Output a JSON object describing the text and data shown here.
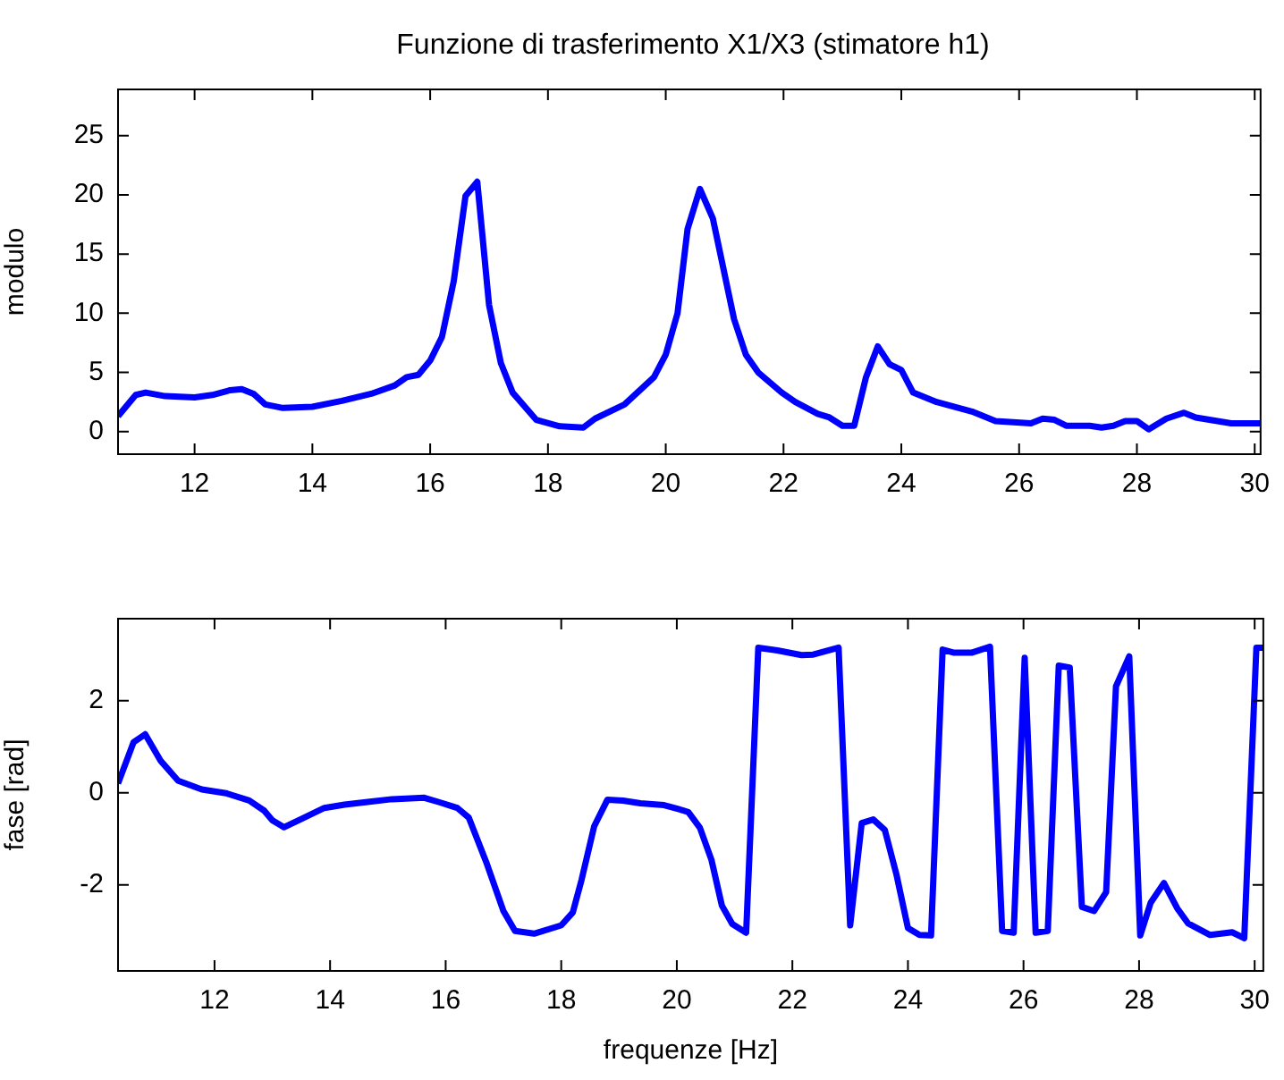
{
  "chart_data": [
    {
      "type": "line",
      "title": "Funzione di trasferimento X1/X3 (stimatore h1)",
      "ylabel": "modulo",
      "color": "#0000ff",
      "grid": false,
      "legend": false,
      "marker": "none",
      "line_style": "solid",
      "xlim": [
        10.7,
        30.1
      ],
      "xticks": [
        12,
        14,
        16,
        18,
        20,
        22,
        24,
        26,
        28,
        30
      ],
      "ylim": [
        -1.9,
        28.9
      ],
      "yticks": [
        0,
        5,
        10,
        15,
        20,
        25
      ],
      "x": [
        10.7,
        11.0,
        11.17,
        11.5,
        12,
        12.3,
        12.6,
        12.8,
        13.0,
        13.2,
        13.5,
        14.0,
        14.5,
        15.0,
        15.4,
        15.6,
        15.8,
        16.0,
        16.2,
        16.4,
        16.6,
        16.8,
        17.0,
        17.2,
        17.4,
        17.8,
        18.2,
        18.6,
        18.8,
        19.3,
        19.8,
        20.0,
        20.2,
        20.37,
        20.58,
        20.8,
        21.16,
        21.36,
        21.57,
        21.97,
        22.2,
        22.58,
        22.78,
        23.0,
        23.2,
        23.4,
        23.6,
        23.8,
        24.0,
        24.2,
        24.6,
        25.2,
        25.6,
        26.2,
        26.4,
        26.6,
        26.8,
        27.2,
        27.4,
        27.6,
        27.8,
        28.0,
        28.2,
        28.5,
        28.8,
        29.0,
        29.6,
        30.1
      ],
      "values": [
        1.3,
        3.1,
        3.3,
        3.0,
        2.9,
        3.1,
        3.5,
        3.6,
        3.2,
        2.3,
        2.0,
        2.1,
        2.6,
        3.2,
        3.9,
        4.6,
        4.8,
        6.0,
        8.0,
        12.7,
        19.9,
        21.1,
        10.7,
        5.8,
        3.3,
        1.0,
        0.45,
        0.35,
        1.1,
        2.3,
        4.6,
        6.5,
        10.0,
        17.1,
        20.5,
        18.0,
        9.5,
        6.5,
        5.0,
        3.3,
        2.5,
        1.5,
        1.2,
        0.5,
        0.5,
        4.6,
        7.2,
        5.7,
        5.2,
        3.3,
        2.5,
        1.7,
        0.9,
        0.7,
        1.1,
        1.0,
        0.5,
        0.5,
        0.35,
        0.5,
        0.9,
        0.9,
        0.2,
        1.1,
        1.6,
        1.2,
        0.7,
        0.7
      ]
    },
    {
      "type": "line",
      "xlabel": "frequenze [Hz]",
      "ylabel": "fase [rad]",
      "color": "#0000ff",
      "grid": false,
      "legend": false,
      "marker": "none",
      "line_style": "solid",
      "xlim": [
        10.33,
        30.15
      ],
      "xticks": [
        12,
        14,
        16,
        18,
        20,
        22,
        24,
        26,
        28,
        30
      ],
      "ylim": [
        -3.87,
        3.78
      ],
      "yticks": [
        -2,
        0,
        2
      ],
      "x": [
        10.33,
        10.6,
        10.8,
        11.07,
        11.37,
        11.78,
        12.2,
        12.6,
        12.86,
        13.0,
        13.2,
        13.5,
        13.9,
        14.25,
        14.65,
        15.07,
        15.63,
        15.9,
        16.2,
        16.4,
        16.7,
        17.0,
        17.2,
        17.53,
        18.0,
        18.2,
        18.35,
        18.57,
        18.8,
        19.07,
        19.37,
        19.78,
        20.04,
        20.2,
        20.4,
        20.6,
        20.78,
        20.96,
        21.2,
        21.41,
        21.74,
        22.16,
        22.36,
        22.8,
        23.0,
        23.2,
        23.4,
        23.6,
        23.8,
        24.0,
        24.2,
        24.4,
        24.6,
        24.8,
        25.1,
        25.42,
        25.63,
        25.83,
        26.02,
        26.21,
        26.42,
        26.61,
        26.8,
        27.01,
        27.22,
        27.43,
        27.6,
        27.83,
        28.02,
        28.2,
        28.43,
        28.66,
        28.85,
        29.23,
        29.61,
        29.82,
        30.03,
        30.15
      ],
      "values": [
        0.2,
        1.1,
        1.27,
        0.69,
        0.26,
        0.07,
        -0.01,
        -0.17,
        -0.39,
        -0.6,
        -0.75,
        -0.57,
        -0.33,
        -0.26,
        -0.2,
        -0.14,
        -0.11,
        -0.21,
        -0.33,
        -0.54,
        -1.5,
        -2.57,
        -3.0,
        -3.06,
        -2.88,
        -2.6,
        -1.9,
        -0.73,
        -0.15,
        -0.17,
        -0.23,
        -0.27,
        -0.36,
        -0.42,
        -0.76,
        -1.46,
        -2.45,
        -2.85,
        -3.04,
        3.15,
        3.09,
        2.99,
        3.0,
        3.15,
        -2.88,
        -0.66,
        -0.58,
        -0.81,
        -1.77,
        -2.94,
        -3.09,
        -3.1,
        3.11,
        3.04,
        3.04,
        3.17,
        -3.0,
        -3.04,
        2.93,
        -3.04,
        -3.0,
        2.76,
        2.72,
        -2.48,
        -2.57,
        -2.16,
        2.31,
        2.96,
        -3.1,
        -2.39,
        -1.96,
        -2.51,
        -2.84,
        -3.09,
        -3.03,
        -3.16,
        3.15,
        3.15
      ]
    }
  ]
}
